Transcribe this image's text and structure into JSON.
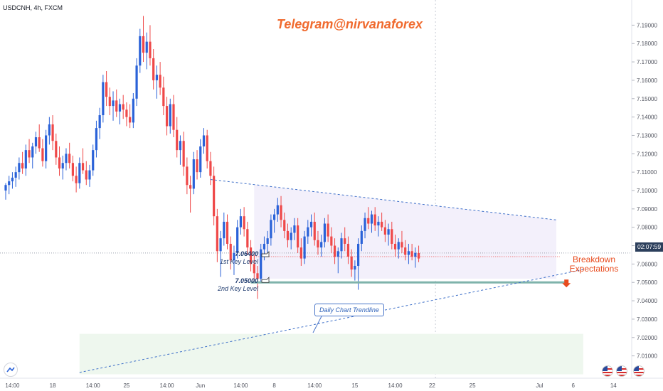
{
  "header": {
    "symbol": "USDCNH, 4h, FXCM"
  },
  "annotations": {
    "telegram": "Telegram@nirvanaforex",
    "key1_value": "7.06400",
    "key1_label": "1st Key Level",
    "key2_value": "7.05000",
    "key2_label": "2nd Key Level",
    "breakdown_line1": "Breakdown",
    "breakdown_line2": "Expectations",
    "trendline_label": "Daily Chart Trendline",
    "current_price_tag": "02:07:59"
  },
  "colors": {
    "up": "#2a62d8",
    "down": "#ef4848",
    "resistance_line": "#3d6fc8",
    "support_line": "#7fb3ab",
    "range_fill": "#f3f0fb",
    "demand_zone": "#eef7ee",
    "annotation_orange": "#f06a2e"
  },
  "chart_data": {
    "type": "candlestick",
    "y_axis_ticks": [
      "7.19000",
      "7.18000",
      "7.17000",
      "7.16000",
      "7.15000",
      "7.14000",
      "7.13000",
      "7.12000",
      "7.11000",
      "7.10000",
      "7.09000",
      "7.08000",
      "7.07000",
      "7.06000",
      "7.05000",
      "7.04000",
      "7.03000",
      "7.02000",
      "7.01000"
    ],
    "y_axis_values": [
      7.19,
      7.18,
      7.17,
      7.16,
      7.15,
      7.14,
      7.13,
      7.12,
      7.11,
      7.1,
      7.09,
      7.08,
      7.07,
      7.06,
      7.05,
      7.04,
      7.03,
      7.02,
      7.01
    ],
    "ylim": [
      7.0025,
      7.1975
    ],
    "x_axis_ticks": [
      "14:00",
      "18",
      "14:00",
      "25",
      "14:00",
      "Jun",
      "14:00",
      "8",
      "14:00",
      "15",
      "14:00",
      "22",
      "25",
      "Jul",
      "6",
      "14"
    ],
    "x_axis_tick_index": [
      2,
      14,
      26,
      36,
      48,
      58,
      70,
      80,
      92,
      104,
      116,
      127,
      139,
      159,
      169,
      181
    ],
    "candles": [
      [
        7.1,
        7.104,
        7.095,
        7.103
      ],
      [
        7.103,
        7.108,
        7.098,
        7.105
      ],
      [
        7.105,
        7.11,
        7.101,
        7.107
      ],
      [
        7.107,
        7.113,
        7.102,
        7.11
      ],
      [
        7.11,
        7.118,
        7.106,
        7.115
      ],
      [
        7.115,
        7.121,
        7.109,
        7.112
      ],
      [
        7.112,
        7.125,
        7.108,
        7.122
      ],
      [
        7.122,
        7.128,
        7.115,
        7.118
      ],
      [
        7.118,
        7.126,
        7.112,
        7.124
      ],
      [
        7.124,
        7.132,
        7.12,
        7.129
      ],
      [
        7.129,
        7.136,
        7.121,
        7.123
      ],
      [
        7.123,
        7.128,
        7.113,
        7.116
      ],
      [
        7.116,
        7.133,
        7.112,
        7.13
      ],
      [
        7.13,
        7.14,
        7.125,
        7.136
      ],
      [
        7.136,
        7.141,
        7.122,
        7.127
      ],
      [
        7.127,
        7.131,
        7.114,
        7.118
      ],
      [
        7.118,
        7.124,
        7.108,
        7.112
      ],
      [
        7.112,
        7.119,
        7.106,
        7.115
      ],
      [
        7.115,
        7.123,
        7.111,
        7.12
      ],
      [
        7.12,
        7.126,
        7.112,
        7.115
      ],
      [
        7.115,
        7.119,
        7.105,
        7.108
      ],
      [
        7.108,
        7.113,
        7.099,
        7.104
      ],
      [
        7.104,
        7.118,
        7.101,
        7.115
      ],
      [
        7.115,
        7.123,
        7.109,
        7.111
      ],
      [
        7.111,
        7.116,
        7.103,
        7.106
      ],
      [
        7.106,
        7.114,
        7.102,
        7.111
      ],
      [
        7.111,
        7.125,
        7.108,
        7.122
      ],
      [
        7.122,
        7.138,
        7.118,
        7.134
      ],
      [
        7.134,
        7.145,
        7.128,
        7.141
      ],
      [
        7.141,
        7.163,
        7.137,
        7.159
      ],
      [
        7.159,
        7.165,
        7.146,
        7.151
      ],
      [
        7.151,
        7.156,
        7.141,
        7.146
      ],
      [
        7.146,
        7.154,
        7.138,
        7.149
      ],
      [
        7.149,
        7.155,
        7.14,
        7.143
      ],
      [
        7.143,
        7.15,
        7.136,
        7.147
      ],
      [
        7.147,
        7.152,
        7.139,
        7.144
      ],
      [
        7.144,
        7.148,
        7.135,
        7.14
      ],
      [
        7.14,
        7.147,
        7.134,
        7.137
      ],
      [
        7.137,
        7.153,
        7.134,
        7.15
      ],
      [
        7.15,
        7.172,
        7.146,
        7.168
      ],
      [
        7.168,
        7.188,
        7.164,
        7.184
      ],
      [
        7.184,
        7.195,
        7.17,
        7.175
      ],
      [
        7.175,
        7.186,
        7.166,
        7.181
      ],
      [
        7.181,
        7.19,
        7.168,
        7.172
      ],
      [
        7.172,
        7.177,
        7.155,
        7.16
      ],
      [
        7.16,
        7.168,
        7.15,
        7.163
      ],
      [
        7.163,
        7.17,
        7.152,
        7.156
      ],
      [
        7.156,
        7.162,
        7.141,
        7.146
      ],
      [
        7.146,
        7.151,
        7.13,
        7.135
      ],
      [
        7.135,
        7.15,
        7.131,
        7.147
      ],
      [
        7.147,
        7.152,
        7.129,
        7.133
      ],
      [
        7.133,
        7.14,
        7.118,
        7.122
      ],
      [
        7.122,
        7.13,
        7.114,
        7.127
      ],
      [
        7.127,
        7.132,
        7.108,
        7.113
      ],
      [
        7.113,
        7.118,
        7.098,
        7.103
      ],
      [
        7.103,
        7.108,
        7.088,
        7.101
      ],
      [
        7.101,
        7.121,
        7.098,
        7.117
      ],
      [
        7.117,
        7.122,
        7.106,
        7.11
      ],
      [
        7.11,
        7.128,
        7.107,
        7.124
      ],
      [
        7.124,
        7.134,
        7.12,
        7.13
      ],
      [
        7.13,
        7.133,
        7.112,
        7.116
      ],
      [
        7.116,
        7.121,
        7.103,
        7.108
      ],
      [
        7.108,
        7.113,
        7.081,
        7.086
      ],
      [
        7.086,
        7.09,
        7.061,
        7.067
      ],
      [
        7.067,
        7.078,
        7.053,
        7.074
      ],
      [
        7.074,
        7.088,
        7.07,
        7.083
      ],
      [
        7.083,
        7.087,
        7.068,
        7.071
      ],
      [
        7.071,
        7.075,
        7.057,
        7.062
      ],
      [
        7.062,
        7.07,
        7.054,
        7.066
      ],
      [
        7.066,
        7.084,
        7.063,
        7.08
      ],
      [
        7.08,
        7.09,
        7.076,
        7.086
      ],
      [
        7.086,
        7.091,
        7.075,
        7.079
      ],
      [
        7.079,
        7.083,
        7.065,
        7.069
      ],
      [
        7.069,
        7.073,
        7.056,
        7.06
      ],
      [
        7.06,
        7.065,
        7.051,
        7.055
      ],
      [
        7.055,
        7.059,
        7.041,
        7.052
      ],
      [
        7.052,
        7.071,
        7.05,
        7.068
      ],
      [
        7.068,
        7.075,
        7.062,
        7.071
      ],
      [
        7.071,
        7.078,
        7.064,
        7.074
      ],
      [
        7.074,
        7.087,
        7.07,
        7.084
      ],
      [
        7.084,
        7.09,
        7.077,
        7.087
      ],
      [
        7.087,
        7.096,
        7.083,
        7.092
      ],
      [
        7.092,
        7.097,
        7.08,
        7.084
      ],
      [
        7.084,
        7.088,
        7.074,
        7.078
      ],
      [
        7.078,
        7.082,
        7.069,
        7.073
      ],
      [
        7.073,
        7.08,
        7.068,
        7.077
      ],
      [
        7.077,
        7.085,
        7.073,
        7.081
      ],
      [
        7.081,
        7.085,
        7.066,
        7.069
      ],
      [
        7.069,
        7.074,
        7.059,
        7.063
      ],
      [
        7.063,
        7.078,
        7.06,
        7.075
      ],
      [
        7.075,
        7.084,
        7.071,
        7.08
      ],
      [
        7.08,
        7.087,
        7.075,
        7.083
      ],
      [
        7.083,
        7.088,
        7.07,
        7.073
      ],
      [
        7.073,
        7.078,
        7.065,
        7.069
      ],
      [
        7.069,
        7.076,
        7.064,
        7.072
      ],
      [
        7.072,
        7.085,
        7.069,
        7.082
      ],
      [
        7.082,
        7.087,
        7.072,
        7.075
      ],
      [
        7.075,
        7.08,
        7.066,
        7.07
      ],
      [
        7.07,
        7.074,
        7.06,
        7.064
      ],
      [
        7.064,
        7.069,
        7.055,
        7.067
      ],
      [
        7.067,
        7.077,
        7.063,
        7.074
      ],
      [
        7.074,
        7.08,
        7.067,
        7.071
      ],
      [
        7.071,
        7.075,
        7.06,
        7.064
      ],
      [
        7.064,
        7.068,
        7.053,
        7.057
      ],
      [
        7.057,
        7.062,
        7.051,
        7.059
      ],
      [
        7.059,
        7.074,
        7.046,
        7.071
      ],
      [
        7.071,
        7.081,
        7.067,
        7.078
      ],
      [
        7.078,
        7.088,
        7.074,
        7.085
      ],
      [
        7.085,
        7.091,
        7.079,
        7.082
      ],
      [
        7.082,
        7.089,
        7.077,
        7.087
      ],
      [
        7.087,
        7.091,
        7.078,
        7.081
      ],
      [
        7.081,
        7.086,
        7.075,
        7.083
      ],
      [
        7.083,
        7.088,
        7.078,
        7.08
      ],
      [
        7.08,
        7.084,
        7.072,
        7.076
      ],
      [
        7.076,
        7.082,
        7.07,
        7.079
      ],
      [
        7.079,
        7.083,
        7.068,
        7.071
      ],
      [
        7.071,
        7.076,
        7.064,
        7.068
      ],
      [
        7.068,
        7.074,
        7.063,
        7.072
      ],
      [
        7.072,
        7.078,
        7.066,
        7.069
      ],
      [
        7.069,
        7.073,
        7.062,
        7.065
      ],
      [
        7.065,
        7.071,
        7.06,
        7.067
      ],
      [
        7.067,
        7.071,
        7.062,
        7.064
      ],
      [
        7.064,
        7.069,
        7.058,
        7.066
      ],
      [
        7.066,
        7.07,
        7.061,
        7.063
      ]
    ],
    "range_lines": {
      "resistance": {
        "from": [
          61,
          7.106
        ],
        "to": [
          164,
          7.084
        ]
      },
      "support": {
        "value": 7.05,
        "from": 73,
        "to": 167
      },
      "first_key_level": 7.064,
      "daily_trendline": {
        "from": [
          22,
          7.001
        ],
        "to": [
          172,
          7.057
        ]
      }
    },
    "range_box": {
      "from": 74,
      "to": 163,
      "top": 7.102,
      "bottom": 7.052
    },
    "demand_zone": {
      "from": 22,
      "to": 172,
      "top": 7.022,
      "bottom": 7.0
    },
    "current_price": 7.066
  }
}
